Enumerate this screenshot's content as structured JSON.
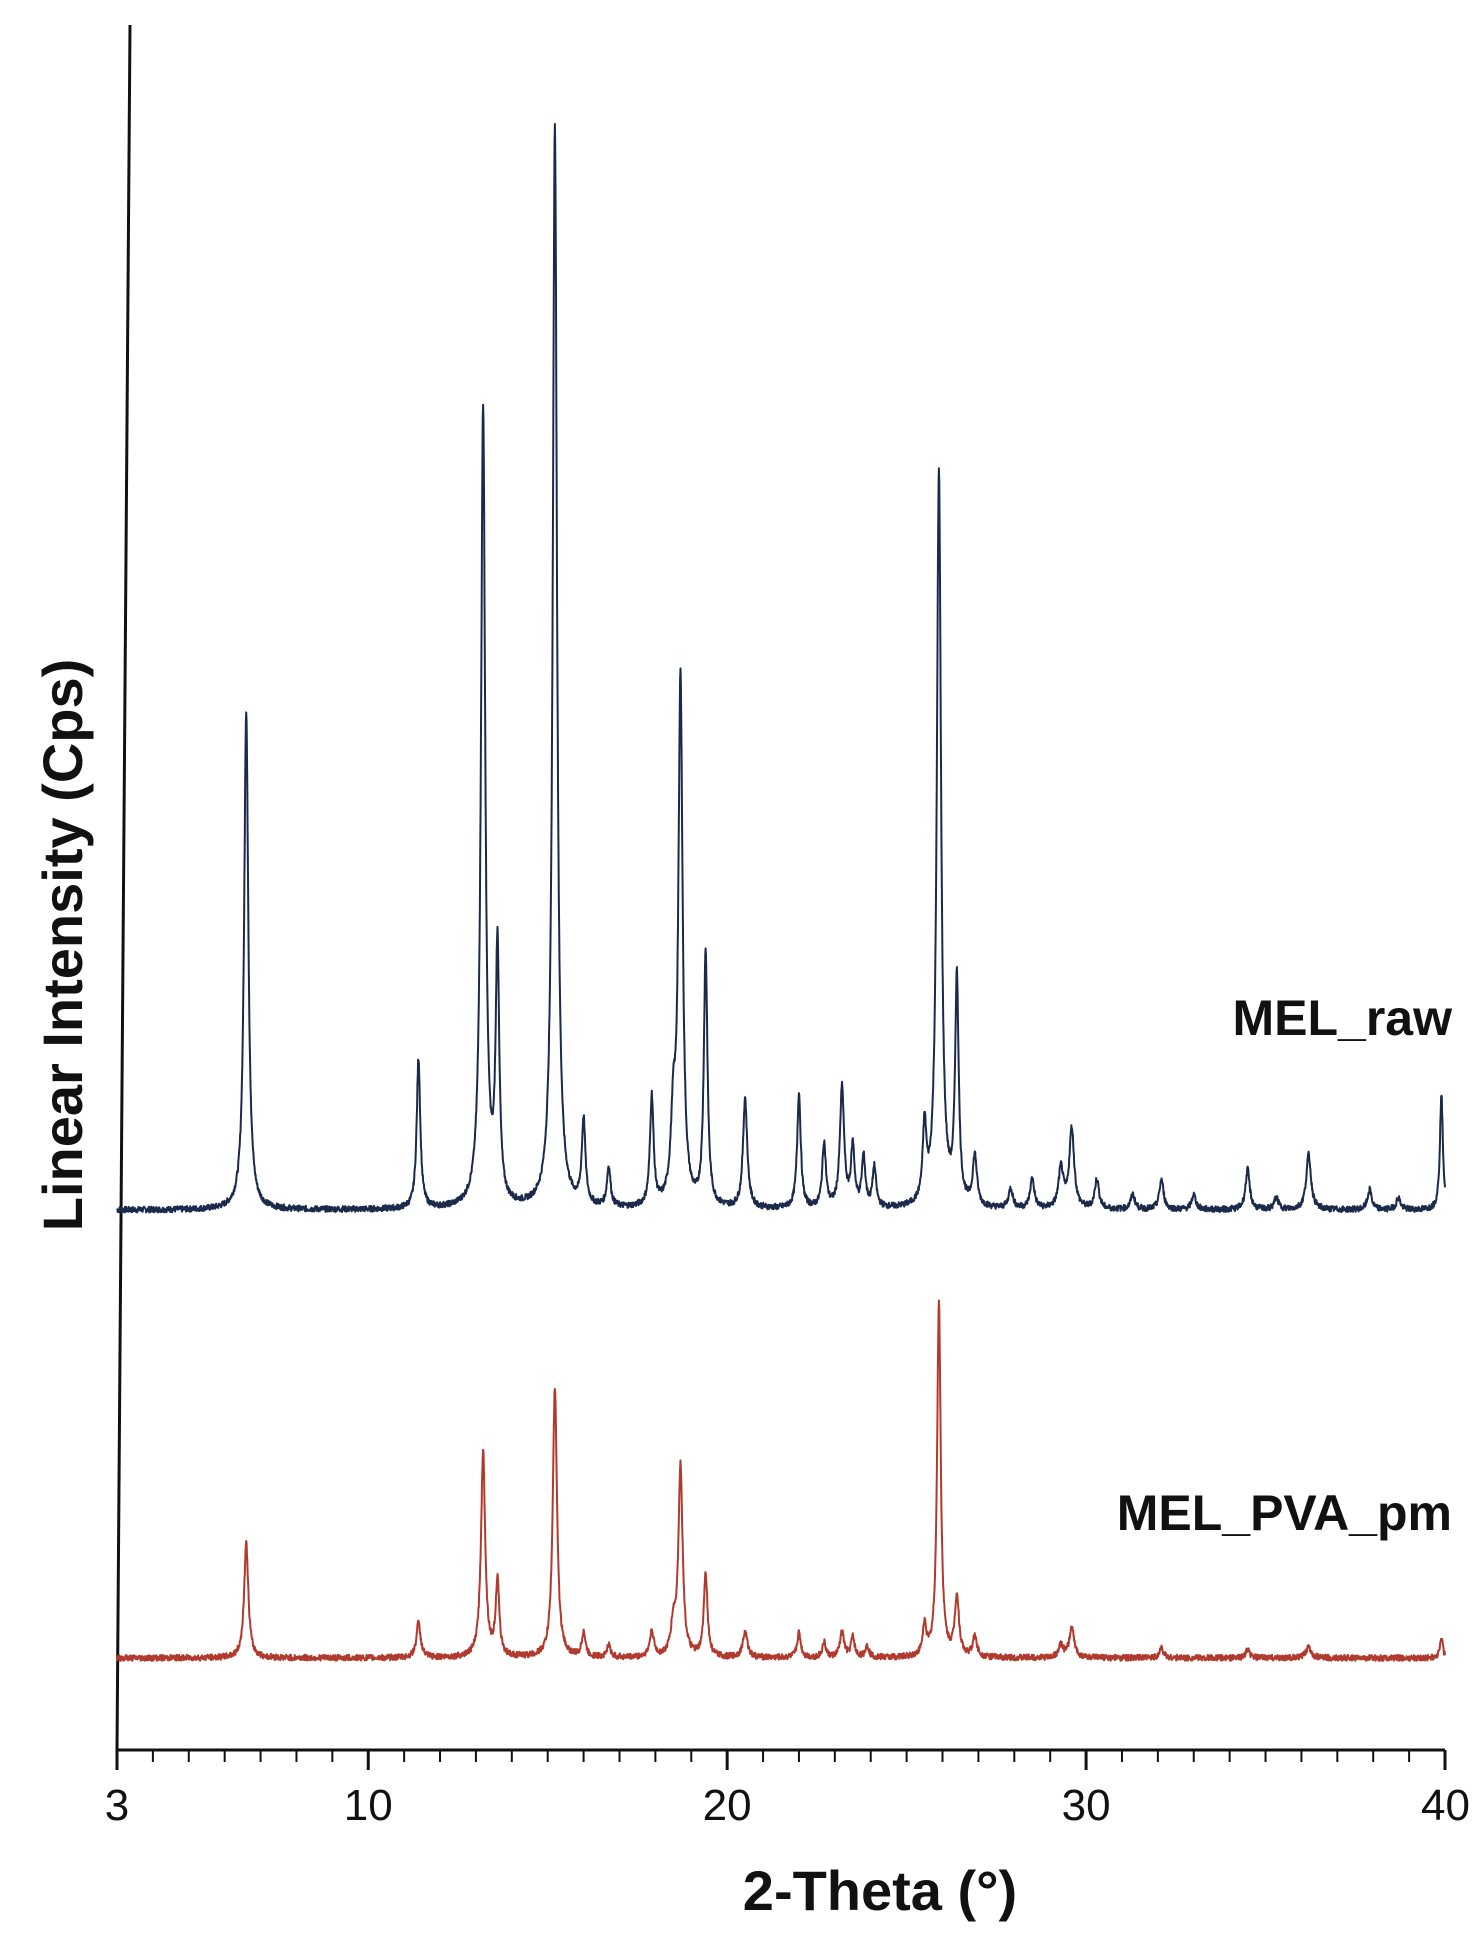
{
  "chart_data": {
    "type": "line",
    "title": "",
    "xlabel": "2-Theta (°)",
    "ylabel": "Linear Intensity (Cps)",
    "xlim": [
      3,
      40
    ],
    "x_ticks": [
      3,
      10,
      20,
      30,
      40
    ],
    "x_minor_step": 1,
    "y_ticks_shown": false,
    "grid": false,
    "legend": "inline labels at right of each trace",
    "colors": {
      "MEL_raw": "#1b2a4a",
      "MEL_PVA_pm": "#b03a2e",
      "axis": "#111111"
    },
    "series": [
      {
        "name": "MEL_raw",
        "label_text": "MEL_raw",
        "baseline": 0,
        "peaks": [
          {
            "x": 6.6,
            "y": 500,
            "w": 0.07
          },
          {
            "x": 11.4,
            "y": 150,
            "w": 0.06
          },
          {
            "x": 13.2,
            "y": 800,
            "w": 0.07
          },
          {
            "x": 13.6,
            "y": 255,
            "w": 0.06
          },
          {
            "x": 15.2,
            "y": 1085,
            "w": 0.07
          },
          {
            "x": 16.0,
            "y": 85,
            "w": 0.06
          },
          {
            "x": 16.7,
            "y": 40,
            "w": 0.06
          },
          {
            "x": 17.9,
            "y": 110,
            "w": 0.06
          },
          {
            "x": 18.5,
            "y": 80,
            "w": 0.08
          },
          {
            "x": 18.7,
            "y": 525,
            "w": 0.07
          },
          {
            "x": 19.4,
            "y": 255,
            "w": 0.06
          },
          {
            "x": 20.5,
            "y": 110,
            "w": 0.07
          },
          {
            "x": 22.0,
            "y": 115,
            "w": 0.06
          },
          {
            "x": 22.7,
            "y": 65,
            "w": 0.06
          },
          {
            "x": 23.2,
            "y": 120,
            "w": 0.07
          },
          {
            "x": 23.5,
            "y": 60,
            "w": 0.06
          },
          {
            "x": 23.8,
            "y": 50,
            "w": 0.06
          },
          {
            "x": 24.1,
            "y": 40,
            "w": 0.06
          },
          {
            "x": 25.5,
            "y": 75,
            "w": 0.06
          },
          {
            "x": 25.9,
            "y": 735,
            "w": 0.07
          },
          {
            "x": 26.4,
            "y": 225,
            "w": 0.06
          },
          {
            "x": 26.9,
            "y": 50,
            "w": 0.07
          },
          {
            "x": 27.9,
            "y": 20,
            "w": 0.07
          },
          {
            "x": 28.5,
            "y": 30,
            "w": 0.07
          },
          {
            "x": 29.3,
            "y": 40,
            "w": 0.08
          },
          {
            "x": 29.6,
            "y": 80,
            "w": 0.08
          },
          {
            "x": 30.3,
            "y": 30,
            "w": 0.07
          },
          {
            "x": 31.3,
            "y": 15,
            "w": 0.07
          },
          {
            "x": 32.1,
            "y": 30,
            "w": 0.07
          },
          {
            "x": 33.0,
            "y": 15,
            "w": 0.07
          },
          {
            "x": 34.5,
            "y": 40,
            "w": 0.07
          },
          {
            "x": 35.3,
            "y": 12,
            "w": 0.07
          },
          {
            "x": 36.2,
            "y": 55,
            "w": 0.08
          },
          {
            "x": 37.9,
            "y": 20,
            "w": 0.07
          },
          {
            "x": 38.7,
            "y": 12,
            "w": 0.07
          },
          {
            "x": 39.9,
            "y": 115,
            "w": 0.05
          }
        ]
      },
      {
        "name": "MEL_PVA_pm",
        "label_text": "MEL_PVA_pm",
        "baseline": 0,
        "peaks": [
          {
            "x": 6.6,
            "y": 115,
            "w": 0.07
          },
          {
            "x": 11.4,
            "y": 35,
            "w": 0.07
          },
          {
            "x": 13.2,
            "y": 205,
            "w": 0.07
          },
          {
            "x": 13.6,
            "y": 75,
            "w": 0.06
          },
          {
            "x": 15.2,
            "y": 270,
            "w": 0.07
          },
          {
            "x": 16.0,
            "y": 25,
            "w": 0.06
          },
          {
            "x": 16.7,
            "y": 12,
            "w": 0.06
          },
          {
            "x": 17.9,
            "y": 25,
            "w": 0.07
          },
          {
            "x": 18.5,
            "y": 30,
            "w": 0.08
          },
          {
            "x": 18.7,
            "y": 190,
            "w": 0.07
          },
          {
            "x": 19.4,
            "y": 85,
            "w": 0.06
          },
          {
            "x": 20.5,
            "y": 25,
            "w": 0.08
          },
          {
            "x": 22.0,
            "y": 25,
            "w": 0.06
          },
          {
            "x": 22.7,
            "y": 15,
            "w": 0.06
          },
          {
            "x": 23.2,
            "y": 25,
            "w": 0.07
          },
          {
            "x": 23.5,
            "y": 20,
            "w": 0.06
          },
          {
            "x": 23.9,
            "y": 12,
            "w": 0.06
          },
          {
            "x": 25.5,
            "y": 30,
            "w": 0.06
          },
          {
            "x": 25.9,
            "y": 355,
            "w": 0.06
          },
          {
            "x": 26.4,
            "y": 60,
            "w": 0.07
          },
          {
            "x": 26.9,
            "y": 20,
            "w": 0.07
          },
          {
            "x": 29.3,
            "y": 12,
            "w": 0.08
          },
          {
            "x": 29.6,
            "y": 30,
            "w": 0.08
          },
          {
            "x": 32.1,
            "y": 10,
            "w": 0.07
          },
          {
            "x": 34.5,
            "y": 8,
            "w": 0.07
          },
          {
            "x": 36.2,
            "y": 12,
            "w": 0.08
          },
          {
            "x": 39.9,
            "y": 20,
            "w": 0.05
          }
        ]
      }
    ]
  }
}
